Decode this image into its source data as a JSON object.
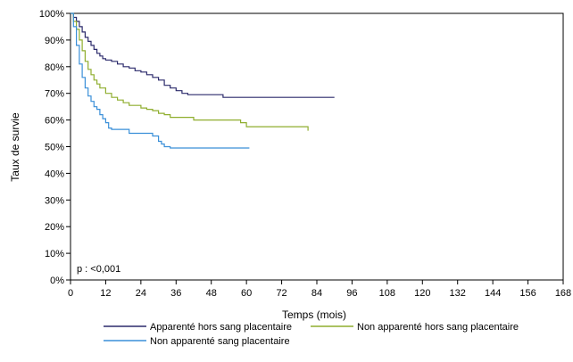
{
  "chart_data": {
    "type": "line",
    "step": true,
    "xlabel": "Temps (mois)",
    "ylabel": "Taux de survie",
    "xlim": [
      0,
      168
    ],
    "ylim": [
      0,
      100
    ],
    "x_ticks": [
      0,
      12,
      24,
      36,
      48,
      60,
      72,
      84,
      96,
      108,
      120,
      132,
      144,
      156,
      168
    ],
    "y_ticks": [
      0,
      10,
      20,
      30,
      40,
      50,
      60,
      70,
      80,
      90,
      100
    ],
    "x_tick_labels": [
      "0",
      "12",
      "24",
      "36",
      "48",
      "60",
      "72",
      "84",
      "96",
      "108",
      "120",
      "132",
      "144",
      "156",
      "168"
    ],
    "y_tick_labels": [
      "0%",
      "10%",
      "20%",
      "30%",
      "40%",
      "50%",
      "60%",
      "70%",
      "80%",
      "90%",
      "100%"
    ],
    "annotation": "p : <0,001",
    "grid": false,
    "legend_position": "bottom",
    "series": [
      {
        "name": "Apparenté hors sang placentaire",
        "color": "#2b2a6b",
        "points": [
          [
            0,
            100
          ],
          [
            1,
            98.5
          ],
          [
            2,
            97
          ],
          [
            3,
            95
          ],
          [
            4,
            93
          ],
          [
            5,
            91
          ],
          [
            6,
            89.5
          ],
          [
            7,
            88
          ],
          [
            8,
            86.5
          ],
          [
            9,
            85
          ],
          [
            10,
            84
          ],
          [
            11,
            83
          ],
          [
            12,
            82.5
          ],
          [
            14,
            82
          ],
          [
            16,
            81
          ],
          [
            18,
            80
          ],
          [
            20,
            79.5
          ],
          [
            22,
            78.5
          ],
          [
            24,
            78
          ],
          [
            26,
            77
          ],
          [
            28,
            76
          ],
          [
            30,
            75
          ],
          [
            32,
            73
          ],
          [
            34,
            72
          ],
          [
            36,
            71
          ],
          [
            38,
            70
          ],
          [
            40,
            69.5
          ],
          [
            46,
            69.5
          ],
          [
            48,
            69.5
          ],
          [
            52,
            68.5
          ],
          [
            60,
            68.5
          ],
          [
            70,
            68.5
          ],
          [
            80,
            68.5
          ],
          [
            90,
            68.5
          ]
        ]
      },
      {
        "name": "Non apparenté hors sang placentaire",
        "color": "#8fae2e",
        "points": [
          [
            0,
            100
          ],
          [
            1,
            97
          ],
          [
            2,
            94
          ],
          [
            3,
            90
          ],
          [
            4,
            86
          ],
          [
            5,
            82
          ],
          [
            6,
            79
          ],
          [
            7,
            77
          ],
          [
            8,
            75
          ],
          [
            9,
            73.5
          ],
          [
            10,
            72
          ],
          [
            12,
            70
          ],
          [
            14,
            68.5
          ],
          [
            16,
            67.5
          ],
          [
            18,
            66.5
          ],
          [
            20,
            65.5
          ],
          [
            24,
            64.5
          ],
          [
            26,
            64
          ],
          [
            28,
            63.5
          ],
          [
            30,
            62.5
          ],
          [
            32,
            62
          ],
          [
            34,
            61
          ],
          [
            40,
            61
          ],
          [
            42,
            60
          ],
          [
            50,
            60
          ],
          [
            56,
            60
          ],
          [
            58,
            59
          ],
          [
            60,
            57.5
          ],
          [
            70,
            57.5
          ],
          [
            80,
            57.5
          ],
          [
            81,
            56
          ]
        ]
      },
      {
        "name": "Non apparenté sang placentaire",
        "color": "#3a8fd8",
        "points": [
          [
            0,
            100
          ],
          [
            1,
            95
          ],
          [
            2,
            88
          ],
          [
            3,
            81
          ],
          [
            4,
            76
          ],
          [
            5,
            72
          ],
          [
            6,
            69
          ],
          [
            7,
            67
          ],
          [
            8,
            65
          ],
          [
            9,
            64
          ],
          [
            10,
            62
          ],
          [
            11,
            60.5
          ],
          [
            12,
            59
          ],
          [
            13,
            57
          ],
          [
            14,
            56.5
          ],
          [
            18,
            56.5
          ],
          [
            20,
            55
          ],
          [
            24,
            55
          ],
          [
            26,
            55
          ],
          [
            28,
            54
          ],
          [
            30,
            52
          ],
          [
            31,
            51
          ],
          [
            32,
            50
          ],
          [
            34,
            49.5
          ],
          [
            40,
            49.5
          ],
          [
            50,
            49.5
          ],
          [
            60,
            49.5
          ],
          [
            61,
            49.5
          ]
        ]
      }
    ]
  }
}
